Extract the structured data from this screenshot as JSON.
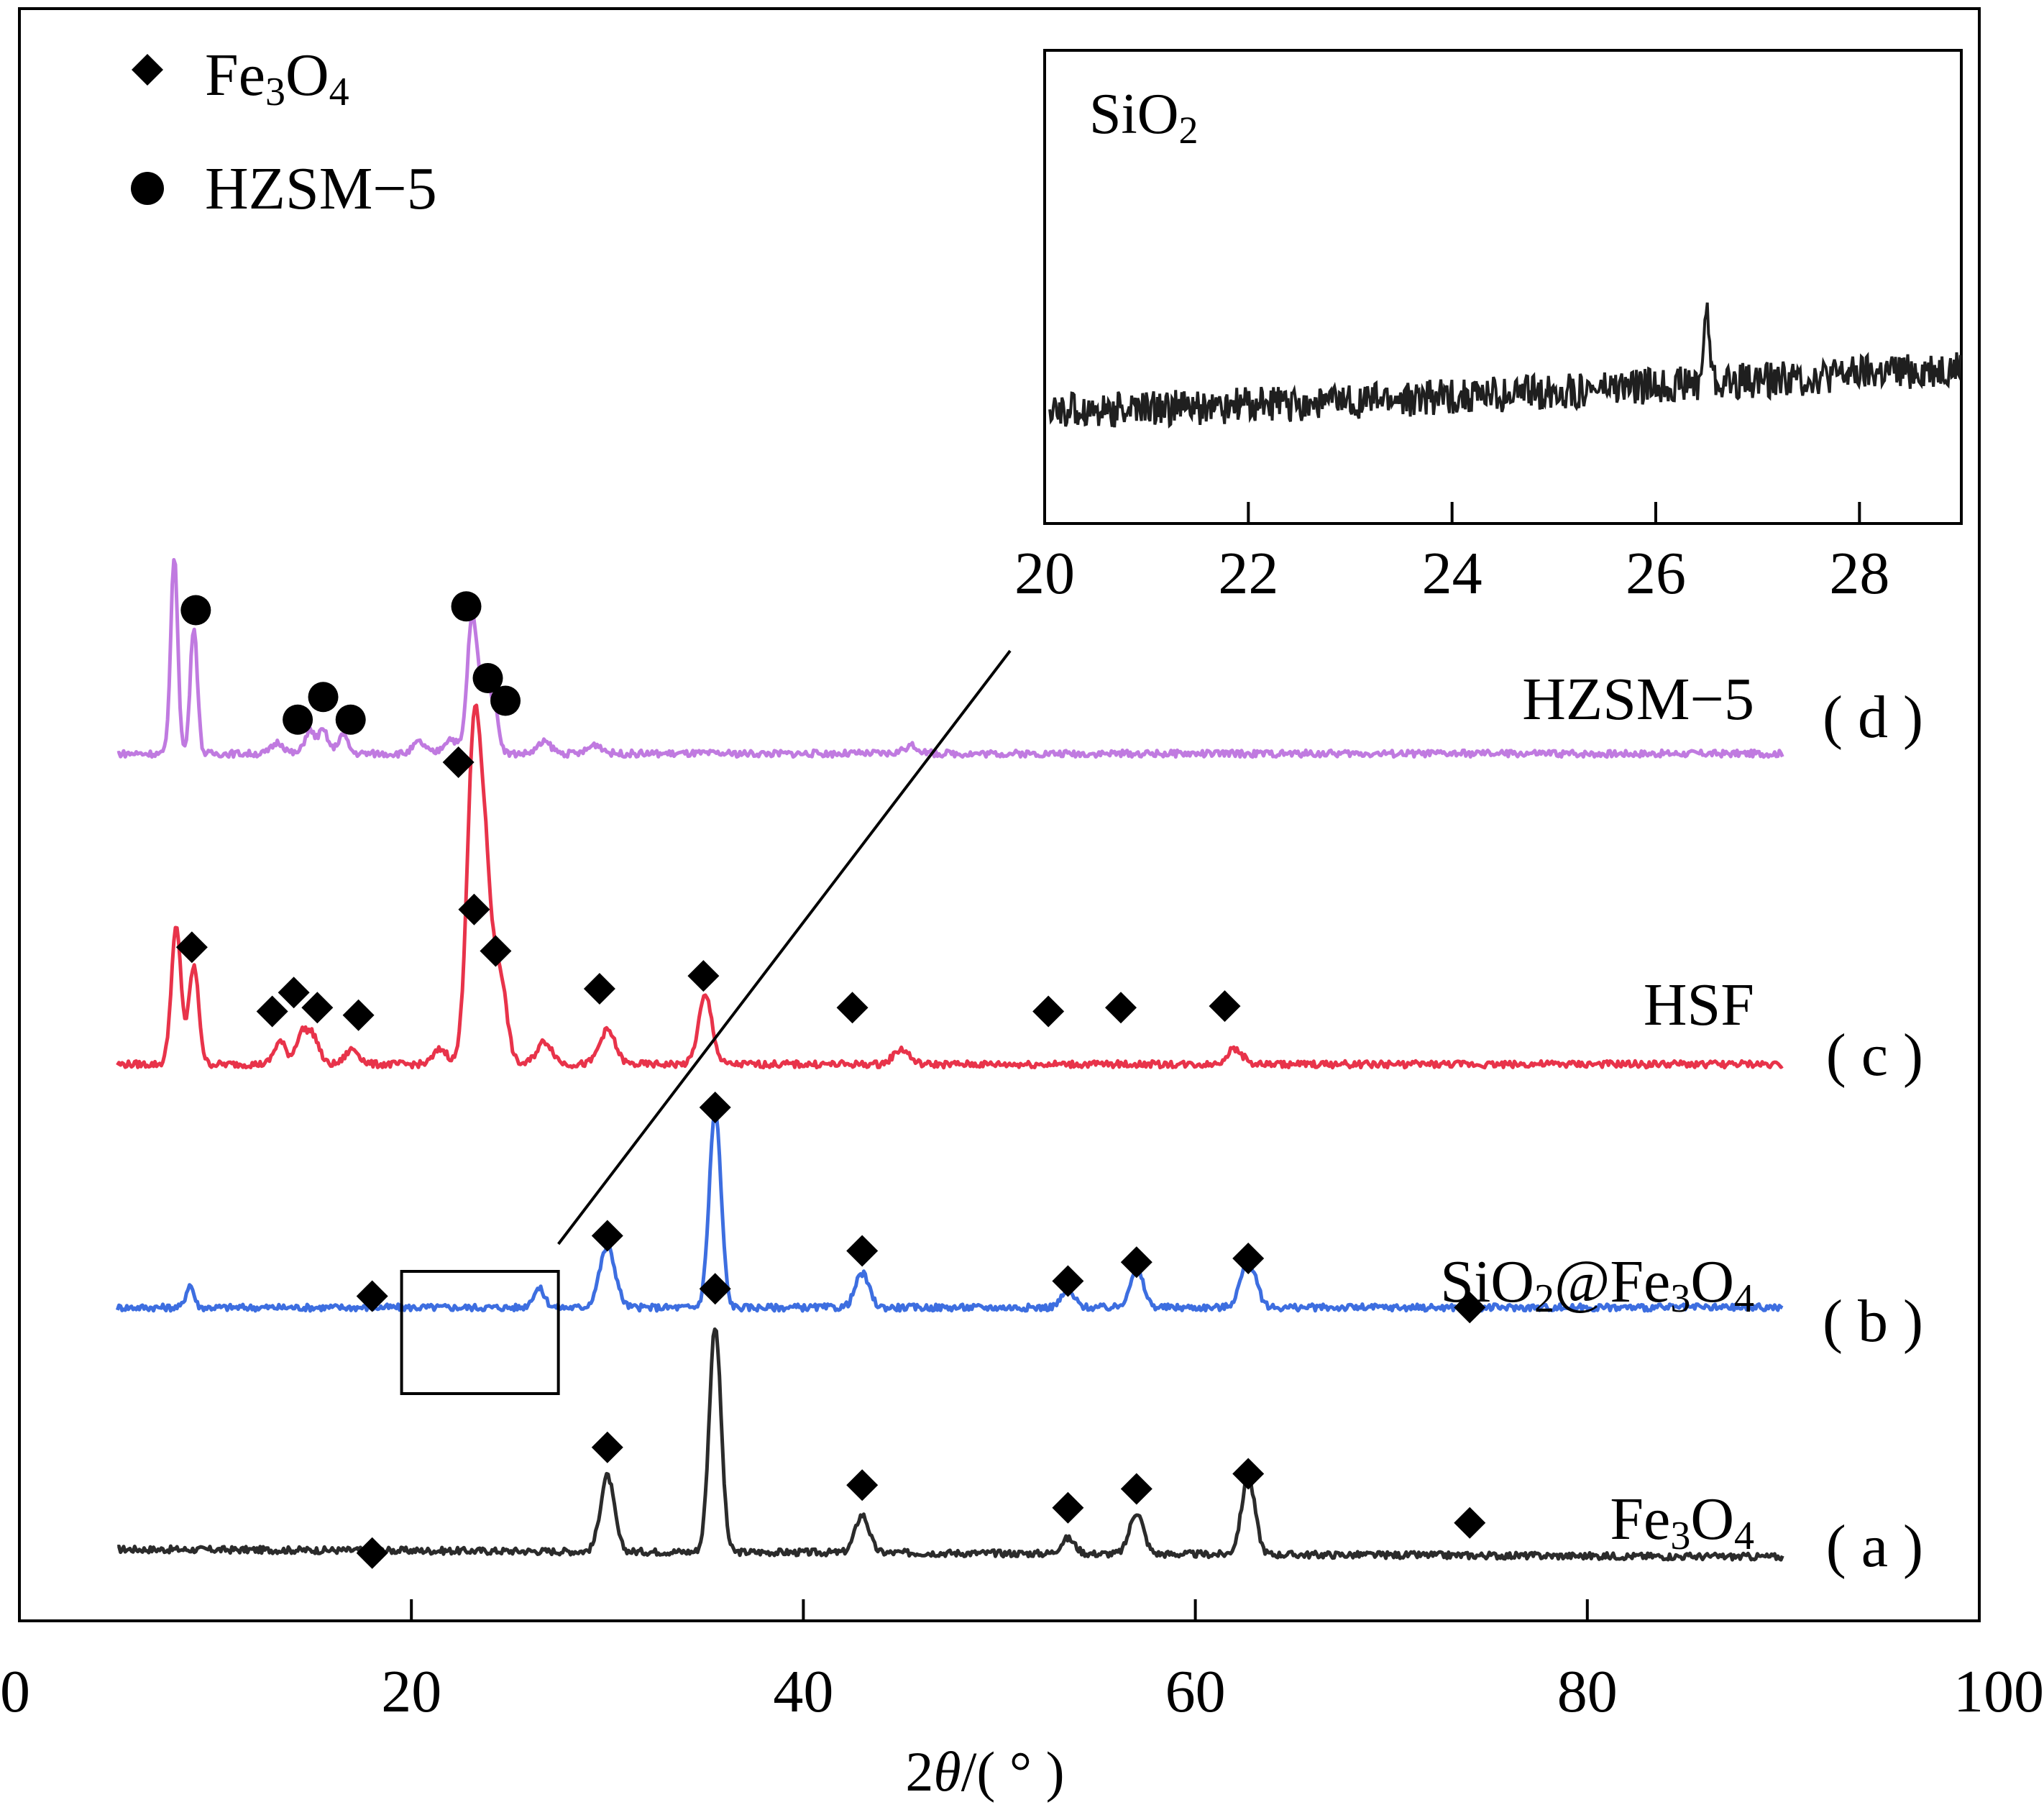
{
  "chart_data": [
    {
      "type": "line",
      "subtype": "stacked-xrd-pattern",
      "xlabel_prefix": "2",
      "xlabel_theta": "θ",
      "xlabel_unit": "/( ° )",
      "xlim": [
        0,
        100
      ],
      "xticks": [
        "0",
        "20",
        "40",
        "60",
        "80",
        "100"
      ],
      "legend": [
        {
          "name": "Fe",
          "sub1": "3",
          "mid": "O",
          "sub2": "4",
          "marker": "diamond"
        },
        {
          "name": "HZSM−5",
          "marker": "circle"
        }
      ],
      "series": [
        {
          "id": "a",
          "name": "Fe3O4",
          "tag": "( a )",
          "color": "#2b2b2b",
          "baseline_start": 0.1,
          "baseline_end": 0.0,
          "peaks": [
            [
              30.0,
              1.0,
              0.35
            ],
            [
              35.5,
              3.0,
              0.3
            ],
            [
              43.0,
              0.5,
              0.35
            ],
            [
              53.5,
              0.2,
              0.35
            ],
            [
              57.0,
              0.55,
              0.35
            ],
            [
              62.7,
              1.0,
              0.35
            ]
          ],
          "markers": [
            [
              18.0,
              0.05
            ],
            [
              30.0,
              1.45
            ],
            [
              35.5,
              3.55
            ],
            [
              43.0,
              0.95
            ],
            [
              53.5,
              0.65
            ],
            [
              57.0,
              0.9
            ],
            [
              62.7,
              1.1
            ],
            [
              74.0,
              0.45
            ]
          ]
        },
        {
          "id": "b",
          "name": "SiO2@Fe3O4",
          "tag": "( b )",
          "color": "#3d6ee0",
          "baseline_start": 0.35,
          "baseline_end": 0.35,
          "peaks": [
            [
              8.7,
              0.3,
              0.2
            ],
            [
              26.5,
              0.25,
              0.3
            ],
            [
              30.0,
              0.8,
              0.4
            ],
            [
              35.5,
              2.6,
              0.3
            ],
            [
              43.0,
              0.45,
              0.35
            ],
            [
              53.5,
              0.2,
              0.35
            ],
            [
              57.0,
              0.5,
              0.35
            ],
            [
              62.7,
              0.6,
              0.4
            ]
          ],
          "markers": [
            [
              18.0,
              0.5
            ],
            [
              30.0,
              1.3
            ],
            [
              35.5,
              3.0
            ],
            [
              43.0,
              1.1
            ],
            [
              53.5,
              0.7
            ],
            [
              57.0,
              0.95
            ],
            [
              62.7,
              1.0
            ],
            [
              74.0,
              0.35
            ]
          ]
        },
        {
          "id": "c",
          "name": "HSF",
          "tag": "( c )",
          "color": "#e8334a",
          "baseline_start": 0.0,
          "baseline_end": 0.0,
          "peaks": [
            [
              8.0,
              1.8,
              0.25
            ],
            [
              8.9,
              1.3,
              0.25
            ],
            [
              13.3,
              0.3,
              0.3
            ],
            [
              14.4,
              0.4,
              0.3
            ],
            [
              15.0,
              0.35,
              0.3
            ],
            [
              17.0,
              0.2,
              0.35
            ],
            [
              21.5,
              0.2,
              0.35
            ],
            [
              23.2,
              4.4,
              0.35
            ],
            [
              23.8,
              2.0,
              0.3
            ],
            [
              24.5,
              1.2,
              0.35
            ],
            [
              26.8,
              0.3,
              0.4
            ],
            [
              30.0,
              0.45,
              0.4
            ],
            [
              35.0,
              0.9,
              0.35
            ],
            [
              45.0,
              0.2,
              0.4
            ],
            [
              62.0,
              0.2,
              0.4
            ]
          ],
          "markers": [
            [
              8.8,
              1.55
            ],
            [
              12.9,
              0.7
            ],
            [
              14.0,
              0.95
            ],
            [
              15.2,
              0.75
            ],
            [
              17.3,
              0.65
            ],
            [
              22.4,
              4.0
            ],
            [
              23.2,
              2.05
            ],
            [
              24.3,
              1.5
            ],
            [
              29.6,
              1.0
            ],
            [
              34.9,
              1.17
            ],
            [
              42.5,
              0.75
            ],
            [
              52.5,
              0.7
            ],
            [
              56.2,
              0.75
            ],
            [
              61.5,
              0.77
            ]
          ]
        },
        {
          "id": "d",
          "name": "HZSM−5",
          "tag": "( d )",
          "color": "#c07ae0",
          "baseline_start": 0.0,
          "baseline_end": 0.0,
          "peaks": [
            [
              7.9,
              2.6,
              0.18
            ],
            [
              8.9,
              1.7,
              0.18
            ],
            [
              13.2,
              0.15,
              0.3
            ],
            [
              14.8,
              0.3,
              0.25
            ],
            [
              15.5,
              0.3,
              0.25
            ],
            [
              16.5,
              0.25,
              0.25
            ],
            [
              20.4,
              0.15,
              0.3
            ],
            [
              22.0,
              0.2,
              0.35
            ],
            [
              23.1,
              1.8,
              0.25
            ],
            [
              23.7,
              0.8,
              0.25
            ],
            [
              24.2,
              0.6,
              0.25
            ],
            [
              26.8,
              0.15,
              0.35
            ],
            [
              29.4,
              0.12,
              0.35
            ],
            [
              45.5,
              0.1,
              0.4
            ]
          ],
          "markers": [
            [
              9.0,
              1.9
            ],
            [
              14.2,
              0.45
            ],
            [
              15.5,
              0.75
            ],
            [
              16.9,
              0.45
            ],
            [
              22.8,
              1.95
            ],
            [
              23.9,
              1.0
            ],
            [
              24.8,
              0.7
            ]
          ]
        }
      ]
    },
    {
      "type": "line",
      "subtype": "inset-zoom",
      "label_main": "SiO",
      "label_sub": "2",
      "xlim": [
        20,
        29
      ],
      "xticks": [
        "20",
        "22",
        "24",
        "26",
        "28"
      ],
      "trace_start": -0.05,
      "trace_end": 0.45,
      "peak_x": 26.5,
      "peak_height": 0.8,
      "zoom_region_x": [
        19.5,
        27.5
      ]
    }
  ]
}
